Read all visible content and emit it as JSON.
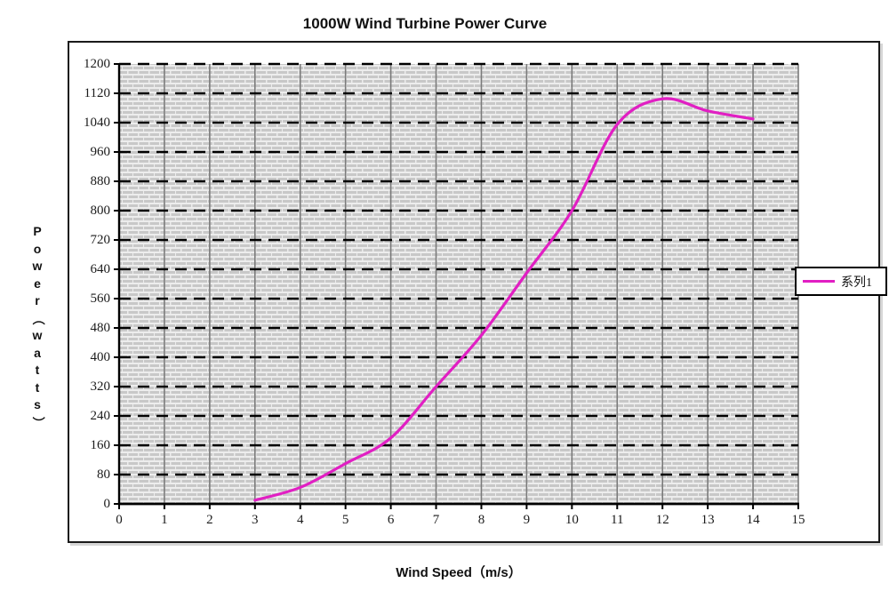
{
  "page": {
    "background": "#ffffff"
  },
  "chart_data": {
    "type": "line",
    "title": "1000W Wind Turbine Power Curve",
    "xlabel": "Wind Speed（m/s）",
    "ylabel": "Power（watts）",
    "xlim": [
      0,
      15
    ],
    "ylim": [
      0,
      1200
    ],
    "x_ticks": [
      0,
      1,
      2,
      3,
      4,
      5,
      6,
      7,
      8,
      9,
      10,
      11,
      12,
      13,
      14,
      15
    ],
    "y_ticks": [
      0,
      80,
      160,
      240,
      320,
      400,
      480,
      560,
      640,
      720,
      800,
      880,
      960,
      1040,
      1120,
      1200
    ],
    "grid": {
      "horizontal": "black dashed at every 80 W",
      "vertical": "gray solid at every 1 m/s",
      "plot_fill": "gray halftone pattern"
    },
    "legend": {
      "position": "right",
      "label": "系列1"
    },
    "series": [
      {
        "name": "系列1",
        "color": "#e11fc3",
        "points": [
          [
            3,
            10
          ],
          [
            4,
            45
          ],
          [
            5,
            110
          ],
          [
            6,
            180
          ],
          [
            7,
            320
          ],
          [
            8,
            460
          ],
          [
            9,
            630
          ],
          [
            10,
            800
          ],
          [
            11,
            1035
          ],
          [
            12,
            1105
          ],
          [
            13,
            1072
          ],
          [
            14,
            1050
          ]
        ]
      }
    ],
    "colors": {
      "curve": "#e11fc3",
      "grid_vertical": "#7b7b7b",
      "grid_major": "#000000",
      "pattern_bg": "#ededed",
      "pattern_fg": "#c8c8c8",
      "axis": "#000000",
      "frame_border": "#1a1a1a"
    }
  }
}
